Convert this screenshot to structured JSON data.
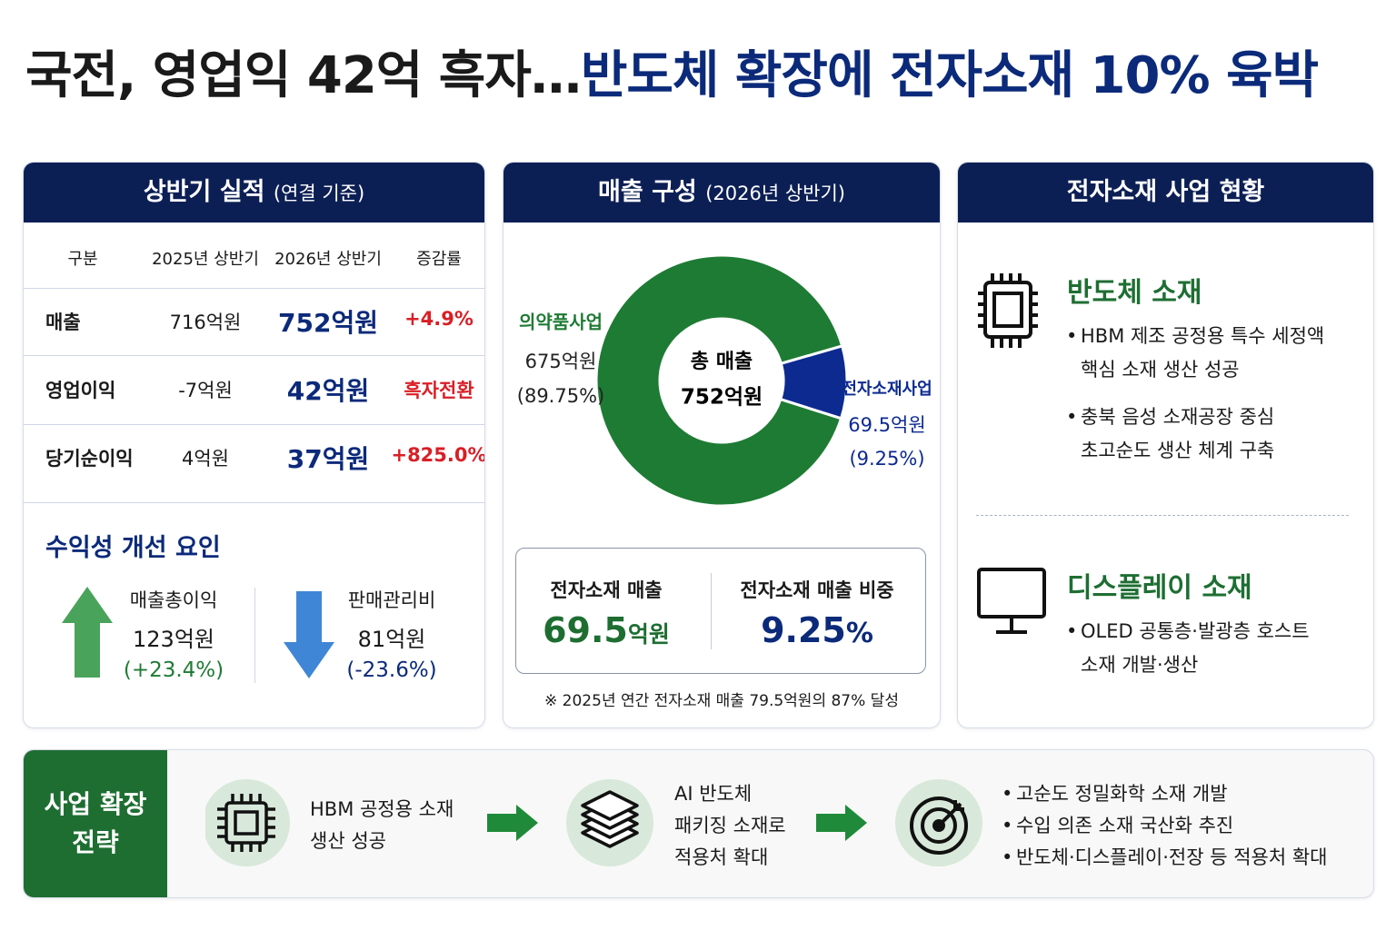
{
  "title": {
    "black": "국전, 영업익 42억 흑자…",
    "navy": "반도체 확장에 전자소재 10% 육박"
  },
  "results": {
    "header": "상반기 실적",
    "header_note": "(연결 기준)",
    "columns": [
      "구분",
      "2025년 상반기",
      "2026년 상반기",
      "증감률"
    ],
    "rows": [
      [
        "매출",
        "716억원",
        "752억원",
        "+4.9%"
      ],
      [
        "영업이익",
        "-7억원",
        "42억원",
        "흑자전환"
      ],
      [
        "당기순이익",
        "4억원",
        "37억원",
        "+825.0%"
      ]
    ],
    "factors_title": "수익성 개선 요인",
    "factors": [
      {
        "label": "매출총이익",
        "value": "123억원",
        "change": "(+23.4%)"
      },
      {
        "label": "판매관리비",
        "value": "81억원",
        "change": "(-23.6%)"
      }
    ]
  },
  "chart_data": {
    "type": "donut",
    "title": "매출 구성",
    "subtitle": "(2026년 상반기)",
    "categories": [
      "의약품사업",
      "전자소재사업"
    ],
    "values": [
      675,
      69.5
    ],
    "value_labels": [
      "675억원",
      "69.5억원"
    ],
    "percent_labels": [
      "(89.75%)",
      "(9.25%)"
    ],
    "colors": [
      "#1e7b34",
      "#0d2a91"
    ],
    "center_label": "총 매출",
    "center_value": "752억원"
  },
  "summary": {
    "items": [
      {
        "label": "전자소재 매출",
        "value": "69.5",
        "unit": "억원"
      },
      {
        "label": "전자소재 매출 비중",
        "value": "9.25",
        "unit": "%"
      }
    ],
    "note": "※ 2025년 연간 전자소재 매출 79.5억원의 87% 달성"
  },
  "business": {
    "header": "전자소재 사업 현황",
    "sections": [
      {
        "title": "반도체 소재",
        "bullets": [
          [
            "HBM 제조 공정용 특수 세정액",
            "핵심 소재 생산 성공"
          ],
          [
            "충북 음성 소재공장 중심",
            "초고순도 생산 체계 구축"
          ]
        ]
      },
      {
        "title": "디스플레이 소재",
        "bullets": [
          [
            "OLED 공통층·발광층 호스트",
            "소재 개발·생산"
          ]
        ]
      }
    ]
  },
  "strategy": {
    "label": [
      "사업 확장",
      "전략"
    ],
    "steps": [
      [
        "HBM 공정용 소재",
        "생산 성공"
      ],
      [
        "AI 반도체",
        "패키징 소재로",
        "적용처 확대"
      ]
    ],
    "bullets": [
      "고순도 정밀화학 소재 개발",
      "수입 의존 소재 국산화 추진",
      "반도체·디스플레이·전장 등 적용처 확대"
    ]
  }
}
